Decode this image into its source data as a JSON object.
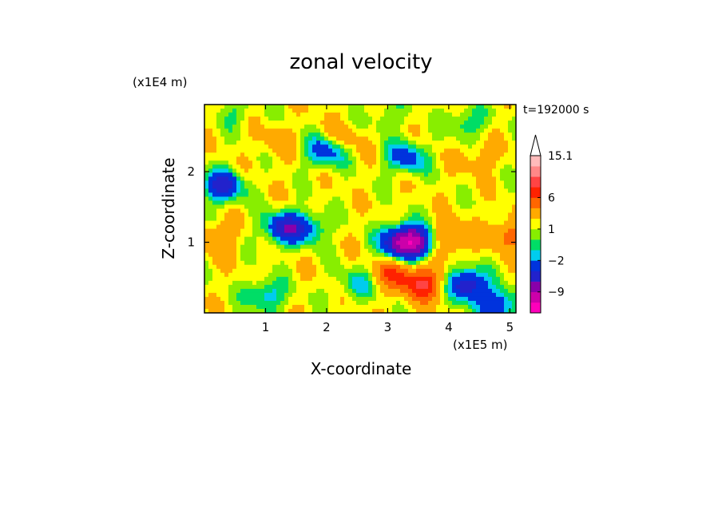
{
  "chart_data": {
    "type": "heatmap",
    "title": "zonal velocity",
    "xlabel": "X-coordinate",
    "ylabel": "Z-coordinate",
    "x_unit": "(x1E5 m)",
    "y_unit": "(x1E4 m)",
    "time_label": "t=192000 s",
    "xlim": [
      0,
      5.1
    ],
    "ylim": [
      0,
      2.95
    ],
    "x_ticks": [
      1,
      2,
      3,
      4,
      5
    ],
    "y_ticks": [
      1,
      2
    ],
    "colorbar": {
      "levels": [
        -15,
        -12,
        -9,
        -6,
        -4,
        -2,
        -1,
        0,
        1,
        2,
        4,
        6,
        8,
        10,
        12,
        15.1
      ],
      "colors": [
        "#ff00bb",
        "#cc00aa",
        "#8800aa",
        "#2222cc",
        "#0033dd",
        "#00ccee",
        "#00dd66",
        "#88ee00",
        "#ffff00",
        "#ffaa00",
        "#ff6600",
        "#ff2200",
        "#ff4444",
        "#ff8888",
        "#ffbbbb"
      ],
      "extend_max": true,
      "tick_labels": [
        "15.1",
        "6",
        "1",
        "−2",
        "−9"
      ],
      "tick_values": [
        15.1,
        6,
        1,
        -2,
        -9
      ]
    },
    "grid": false,
    "field_features": [
      {
        "x": 1.7,
        "z": 1.2,
        "value": -2
      },
      {
        "x": 3.2,
        "z": 1.0,
        "value": -6
      },
      {
        "x": 3.45,
        "z": 1.0,
        "value": -7
      },
      {
        "x": 3.1,
        "z": 0.55,
        "value": 6
      },
      {
        "x": 3.6,
        "z": 0.4,
        "value": 8
      },
      {
        "x": 4.0,
        "z": 1.05,
        "value": 5
      },
      {
        "x": 4.3,
        "z": 0.4,
        "value": -6
      },
      {
        "x": 0.2,
        "z": 1.05,
        "value": 4
      },
      {
        "x": 5.0,
        "z": 1.1,
        "value": 5
      },
      {
        "x": 0.3,
        "z": 1.8,
        "value": -5
      },
      {
        "x": 1.3,
        "z": 1.2,
        "value": -5
      },
      {
        "x": 2.0,
        "z": 2.3,
        "value": -4
      },
      {
        "x": 2.2,
        "z": 2.45,
        "value": 4
      },
      {
        "x": 1.2,
        "z": 2.4,
        "value": 3
      },
      {
        "x": 3.3,
        "z": 2.2,
        "value": -3
      },
      {
        "x": 4.5,
        "z": 2.2,
        "value": 3
      },
      {
        "x": 4.3,
        "z": 2.7,
        "value": -1
      },
      {
        "x": 2.5,
        "z": 0.4,
        "value": -1
      },
      {
        "x": 1.0,
        "z": 0.25,
        "value": -2
      },
      {
        "x": 4.8,
        "z": 0.1,
        "value": -4
      },
      {
        "x": 0.5,
        "z": 2.85,
        "value": 0
      },
      {
        "x": 3.0,
        "z": 2.8,
        "value": 0
      }
    ],
    "base_value": 1.5
  }
}
